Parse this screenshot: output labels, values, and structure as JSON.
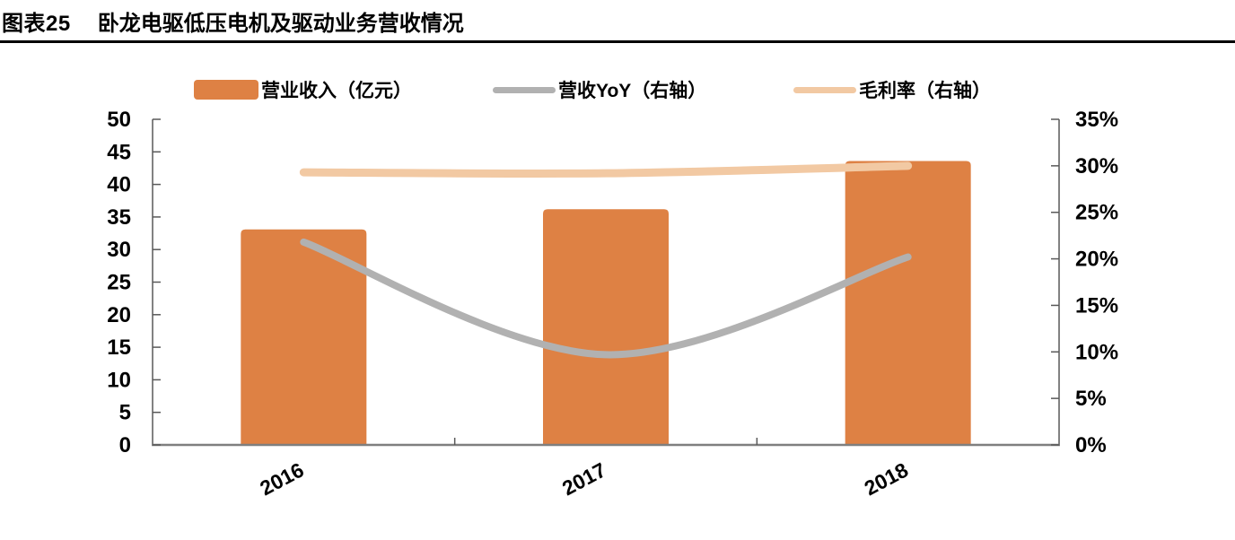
{
  "header": {
    "figure_label": "图表25",
    "title": "卧龙电驱低压电机及驱动业务营收情况"
  },
  "legend": {
    "position": "top",
    "items": [
      {
        "label": "营业收入（亿元）",
        "swatch": "bar",
        "color": "#DE8144"
      },
      {
        "label": "营收YoY（右轴）",
        "swatch": "line",
        "color": "#B1B1B1"
      },
      {
        "label": "毛利率（右轴）",
        "swatch": "line",
        "color": "#F2C9A3"
      }
    ]
  },
  "chart_data": {
    "type": "combo-bar-line",
    "title": "卧龙电驱低压电机及驱动业务营收情况",
    "categories": [
      "2016",
      "2017",
      "2018"
    ],
    "series": [
      {
        "name": "营业收入（亿元）",
        "chart_type": "bar",
        "axis": "left",
        "color": "#DE8144",
        "values": [
          33.1,
          36.2,
          43.6
        ]
      },
      {
        "name": "营收YoY（右轴）",
        "chart_type": "line",
        "axis": "right",
        "color": "#B1B1B1",
        "values": [
          21.8,
          9.7,
          20.2
        ]
      },
      {
        "name": "毛利率（右轴）",
        "chart_type": "line",
        "axis": "right",
        "color": "#F2C9A3",
        "values": [
          29.3,
          29.2,
          30.0
        ]
      }
    ],
    "left_axis": {
      "min": 0,
      "max": 50,
      "tick_labels": [
        "0",
        "5",
        "10",
        "15",
        "20",
        "25",
        "30",
        "35",
        "40",
        "45",
        "50"
      ]
    },
    "right_axis": {
      "min": 0,
      "max": 35,
      "tick_labels": [
        "0%",
        "5%",
        "10%",
        "15%",
        "20%",
        "25%",
        "30%",
        "35%"
      ]
    },
    "grid": false,
    "legend_position": "top",
    "colors": {
      "bar": "#DE8144",
      "yoy_line": "#B1B1B1",
      "margin_line": "#F2C9A3",
      "axis_line": "#595959",
      "baseline": "#7F7F7F",
      "text": "#000000"
    }
  }
}
